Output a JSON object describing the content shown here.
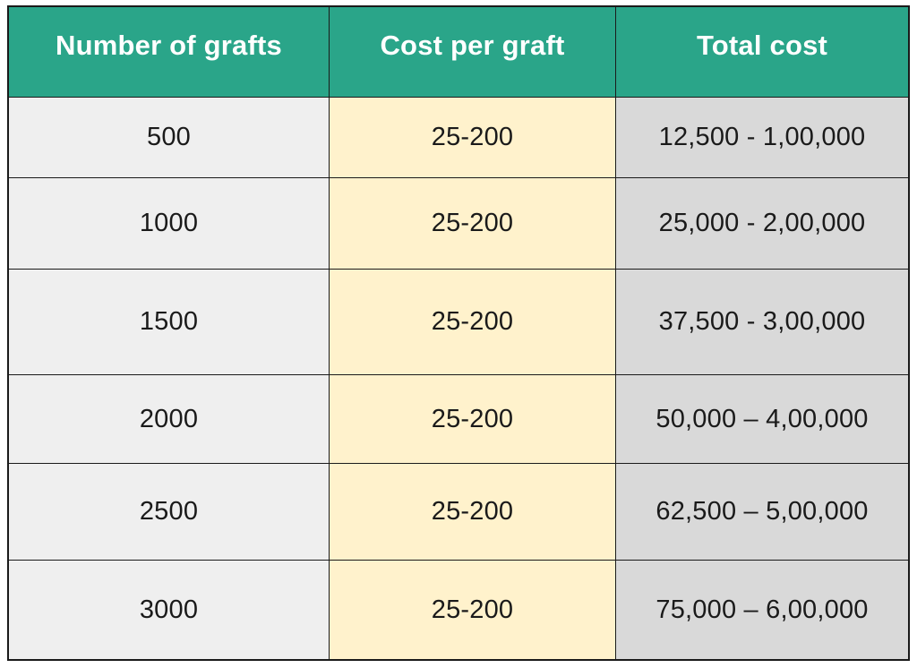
{
  "table": {
    "headers": [
      "Number of grafts",
      "Cost per graft",
      "Total cost"
    ],
    "rows": [
      [
        "500",
        "25-200",
        "12,500 - 1,00,000"
      ],
      [
        "1000",
        "25-200",
        "25,000 - 2,00,000"
      ],
      [
        "1500",
        "25-200",
        "37,500 - 3,00,000"
      ],
      [
        "2000",
        "25-200",
        "50,000 – 4,00,000"
      ],
      [
        "2500",
        "25-200",
        "62,500 – 5,00,000"
      ],
      [
        "3000",
        "25-200",
        "75,000 – 6,00,000"
      ]
    ]
  },
  "colors": {
    "header_bg": "#2aa589",
    "header_text": "#ffffff",
    "col1_bg": "#efefef",
    "col2_bg": "#fff2cc",
    "col3_bg": "#d9d9d9",
    "border": "#1a1a1a"
  }
}
